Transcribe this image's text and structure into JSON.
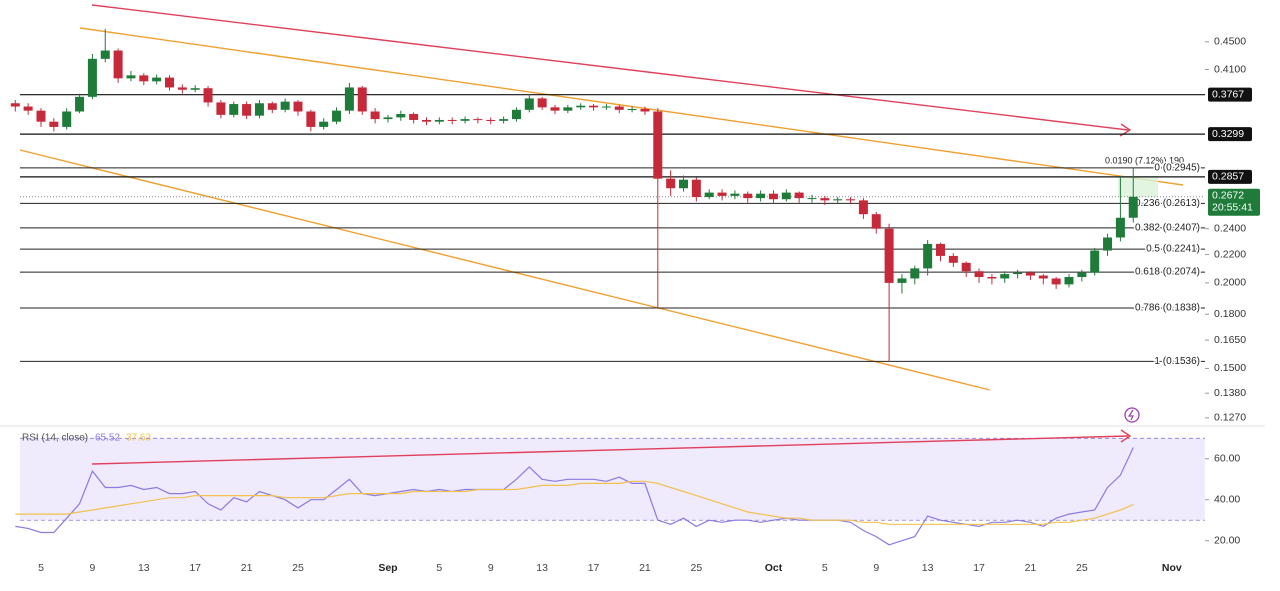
{
  "chart_data": [
    {
      "type": "candlestick",
      "categories": [
        null,
        null,
        "5",
        null,
        null,
        null,
        "9",
        null,
        null,
        null,
        "13",
        null,
        null,
        null,
        "17",
        null,
        null,
        null,
        "21",
        null,
        null,
        null,
        "25",
        null,
        null,
        null,
        null,
        null,
        null,
        "Sep",
        null,
        null,
        null,
        "5",
        null,
        null,
        null,
        "9",
        null,
        null,
        null,
        "13",
        null,
        null,
        null,
        "17",
        null,
        null,
        null,
        "21",
        null,
        null,
        null,
        "25",
        null,
        null,
        null,
        null,
        null,
        "Oct",
        null,
        null,
        null,
        "5",
        null,
        null,
        null,
        "9",
        null,
        null,
        null,
        "13",
        null,
        null,
        null,
        "17",
        null,
        null,
        null,
        "21",
        null,
        null,
        null,
        "25",
        null,
        null,
        null,
        null,
        null,
        null,
        "Nov",
        null
      ],
      "open": [
        0.366,
        0.362,
        0.357,
        0.344,
        0.338,
        0.356,
        0.374,
        0.425,
        0.437,
        0.398,
        0.402,
        0.394,
        0.399,
        0.386,
        0.383,
        0.385,
        0.367,
        0.352,
        0.365,
        0.351,
        0.366,
        0.358,
        0.368,
        0.356,
        0.338,
        0.344,
        0.357,
        0.386,
        0.356,
        0.347,
        0.349,
        0.353,
        0.346,
        0.344,
        0.346,
        0.345,
        0.347,
        0.346,
        0.345,
        0.347,
        0.358,
        0.372,
        0.361,
        0.357,
        0.361,
        0.363,
        0.361,
        0.362,
        0.358,
        0.359,
        0.356,
        0.284,
        0.275,
        0.283,
        0.267,
        0.271,
        0.268,
        0.27,
        0.266,
        0.27,
        0.265,
        0.271,
        0.266,
        0.266,
        0.264,
        0.265,
        0.264,
        0.252,
        0.24,
        0.2,
        0.203,
        0.21,
        0.228,
        0.219,
        0.214,
        0.208,
        0.204,
        0.203,
        0.206,
        0.207,
        0.205,
        0.203,
        0.199,
        0.204,
        0.207,
        0.223,
        0.233,
        0.249,
        null,
        null,
        null,
        null
      ],
      "high": [
        0.37,
        0.366,
        0.36,
        0.348,
        0.36,
        0.378,
        0.432,
        0.47,
        0.44,
        0.408,
        0.405,
        0.403,
        0.402,
        0.39,
        0.389,
        0.388,
        0.37,
        0.368,
        0.368,
        0.37,
        0.368,
        0.372,
        0.37,
        0.358,
        0.348,
        0.361,
        0.392,
        0.388,
        0.36,
        0.352,
        0.357,
        0.355,
        0.349,
        0.349,
        0.349,
        0.35,
        0.349,
        0.349,
        0.35,
        0.361,
        0.377,
        0.374,
        0.364,
        0.364,
        0.366,
        0.365,
        0.365,
        0.364,
        0.362,
        0.362,
        0.36,
        0.292,
        0.287,
        0.285,
        0.274,
        0.274,
        0.273,
        0.272,
        0.273,
        0.273,
        0.274,
        0.272,
        0.269,
        0.268,
        0.267,
        0.267,
        0.266,
        0.254,
        0.244,
        0.206,
        0.212,
        0.231,
        0.229,
        0.221,
        0.215,
        0.21,
        0.206,
        0.208,
        0.209,
        0.208,
        0.206,
        0.204,
        0.206,
        0.209,
        0.225,
        0.236,
        0.2857,
        0.2945,
        null,
        null,
        null,
        null
      ],
      "low": [
        0.356,
        0.352,
        0.338,
        0.333,
        0.335,
        0.354,
        0.371,
        0.42,
        0.392,
        0.394,
        0.389,
        0.39,
        0.382,
        0.378,
        0.38,
        0.362,
        0.348,
        0.349,
        0.347,
        0.348,
        0.354,
        0.355,
        0.351,
        0.333,
        0.335,
        0.341,
        0.353,
        0.352,
        0.342,
        0.343,
        0.345,
        0.342,
        0.34,
        0.341,
        0.341,
        0.342,
        0.342,
        0.341,
        0.342,
        0.344,
        0.355,
        0.358,
        0.353,
        0.354,
        0.358,
        0.357,
        0.358,
        0.354,
        0.355,
        0.352,
        0.1838,
        0.268,
        0.272,
        0.263,
        0.265,
        0.264,
        0.265,
        0.262,
        0.263,
        0.261,
        0.263,
        0.262,
        0.262,
        0.26,
        0.261,
        0.261,
        0.248,
        0.236,
        0.1536,
        0.193,
        0.199,
        0.205,
        0.215,
        0.211,
        0.204,
        0.2,
        0.199,
        0.2,
        0.203,
        0.202,
        0.199,
        0.196,
        0.197,
        0.201,
        0.205,
        0.219,
        0.23,
        0.245,
        null,
        null,
        null,
        null
      ],
      "close": [
        0.362,
        0.357,
        0.344,
        0.338,
        0.356,
        0.374,
        0.425,
        0.437,
        0.398,
        0.402,
        0.394,
        0.399,
        0.386,
        0.383,
        0.385,
        0.367,
        0.352,
        0.365,
        0.351,
        0.366,
        0.358,
        0.368,
        0.356,
        0.338,
        0.344,
        0.357,
        0.386,
        0.356,
        0.347,
        0.349,
        0.353,
        0.346,
        0.344,
        0.346,
        0.345,
        0.347,
        0.346,
        0.345,
        0.347,
        0.358,
        0.372,
        0.361,
        0.357,
        0.361,
        0.363,
        0.361,
        0.362,
        0.358,
        0.359,
        0.356,
        0.284,
        0.275,
        0.283,
        0.267,
        0.271,
        0.268,
        0.27,
        0.266,
        0.27,
        0.265,
        0.271,
        0.266,
        0.266,
        0.264,
        0.265,
        0.264,
        0.252,
        0.24,
        0.2,
        0.203,
        0.21,
        0.228,
        0.219,
        0.214,
        0.208,
        0.204,
        0.203,
        0.206,
        0.207,
        0.205,
        0.203,
        0.199,
        0.204,
        0.207,
        0.223,
        0.233,
        0.249,
        0.2672,
        null,
        null,
        null,
        null
      ],
      "up_color": "#1e7b3a",
      "down_color": "#c62a3a",
      "log_scale": true,
      "ylim": [
        0.124,
        0.518
      ],
      "yticks": [
        {
          "value": 0.45,
          "label": "0.4500"
        },
        {
          "value": 0.41,
          "label": "0.4100"
        },
        {
          "value": 0.24,
          "label": "0.2400"
        },
        {
          "value": 0.22,
          "label": "0.2200"
        },
        {
          "value": 0.2,
          "label": "0.2000"
        },
        {
          "value": 0.18,
          "label": "0.1800"
        },
        {
          "value": 0.165,
          "label": "0.1650"
        },
        {
          "value": 0.15,
          "label": "0.1500"
        },
        {
          "value": 0.138,
          "label": "0.1380"
        },
        {
          "value": 0.127,
          "label": "0.1270"
        }
      ],
      "levels": [
        {
          "value": 0.3767,
          "label": "0.3767"
        },
        {
          "value": 0.3299,
          "label": "0.3299"
        },
        {
          "value": 0.2857,
          "label": "0.2857"
        }
      ],
      "fib_levels": [
        {
          "value": 0.2945,
          "label": "0 (0.2945)"
        },
        {
          "value": 0.2613,
          "label": "0.236 (0.2613)"
        },
        {
          "value": 0.2407,
          "label": "0.382 (0.2407)"
        },
        {
          "value": 0.2241,
          "label": "0.5 (0.2241)"
        },
        {
          "value": 0.2074,
          "label": "0.618 (0.2074)"
        },
        {
          "value": 0.1838,
          "label": "0.786 (0.1838)"
        },
        {
          "value": 0.1536,
          "label": "1 (0.1536)"
        }
      ],
      "last_price": {
        "value": 0.2672,
        "label": "0.2672",
        "countdown": "20:55:41"
      },
      "measure_label": "0.0190 (7.12%) 190"
    },
    {
      "type": "line",
      "title": "RSI (14, close)",
      "series": [
        {
          "color": "#8b7ae0",
          "values": [
            27,
            26,
            24,
            24,
            31,
            38,
            54,
            46,
            46,
            47,
            45,
            46,
            43,
            43,
            44,
            38,
            35,
            41,
            39,
            44,
            42,
            40,
            36,
            40,
            40,
            45,
            50,
            43,
            42,
            43,
            44,
            45,
            44,
            45,
            44,
            45,
            45,
            45,
            45,
            50,
            56,
            50,
            49,
            50,
            50,
            50,
            49,
            51,
            48,
            48,
            30,
            28,
            31,
            27,
            30,
            29,
            30,
            30,
            29,
            30,
            31,
            30,
            30,
            30,
            30,
            29,
            25,
            22,
            18,
            20,
            22,
            32,
            30,
            29,
            28,
            27,
            29,
            29,
            30,
            29,
            27,
            31,
            33,
            34,
            35,
            46,
            52,
            65.52,
            null,
            null,
            null,
            null
          ]
        },
        {
          "color": "#f2c14e",
          "values": [
            33,
            33,
            33,
            33,
            33,
            34,
            35,
            36,
            37,
            38,
            39,
            40,
            41,
            41,
            42,
            42,
            42,
            42,
            42,
            42,
            42,
            41,
            41,
            41,
            41,
            42,
            43,
            43,
            43,
            43,
            43,
            44,
            44,
            44,
            44,
            44,
            45,
            45,
            45,
            45,
            46,
            47,
            47,
            47,
            48,
            48,
            48,
            48,
            49,
            49,
            48,
            46,
            44,
            42,
            40,
            38,
            36,
            34,
            33,
            32,
            31,
            31,
            30,
            30,
            30,
            30,
            29,
            29,
            28,
            28,
            28,
            28,
            28,
            28,
            28,
            28,
            28,
            28,
            28,
            28,
            28,
            29,
            29,
            30,
            31,
            33,
            35,
            37.63,
            null,
            null,
            null,
            null
          ]
        }
      ],
      "band": [
        30,
        70
      ],
      "ylim": [
        14,
        76
      ],
      "yticks": [
        {
          "value": 60,
          "label": "60.00"
        },
        {
          "value": 40,
          "label": "40.00"
        },
        {
          "value": 20,
          "label": "20.00"
        }
      ]
    }
  ]
}
